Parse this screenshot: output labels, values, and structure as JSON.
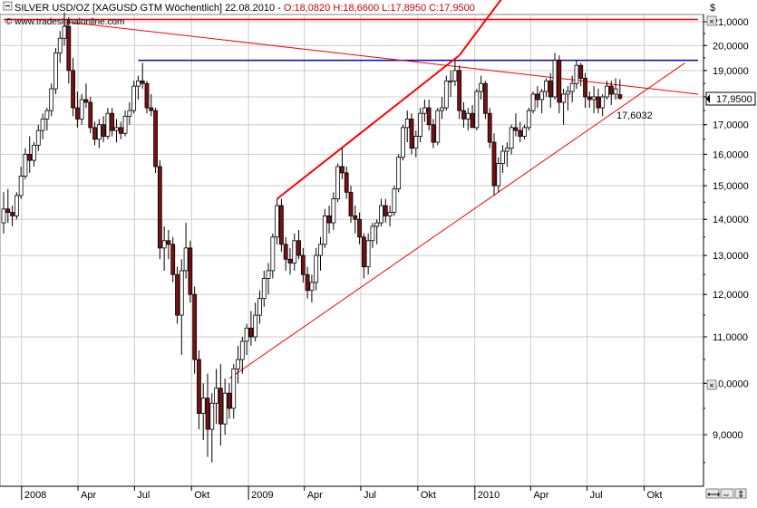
{
  "header": {
    "title_prefix": "SILVER USD/OZ [XAGUSD GTM  Wöchentlich] 22.08.2010 - ",
    "ohlc": "O:18,0820 H:18,6600 L:17,8950 C:17,9500",
    "watermark": "© www.tradesignalonline.com"
  },
  "price_axis": {
    "currency_label": "$",
    "last_price_label": "17,9500",
    "ticks": [
      "21,0000",
      "20,0000",
      "19,0000",
      "18,0000",
      "17,0000",
      "16,0000",
      "15,0000",
      "14,0000",
      "13,0000",
      "12,0000",
      "11,0000",
      "10,0000",
      "9,0000"
    ]
  },
  "time_axis": {
    "ticks": [
      "2008",
      "Apr",
      "Jul",
      "Okt",
      "2009",
      "Apr",
      "Jul",
      "Okt",
      "2010",
      "Apr",
      "Jul",
      "Okt"
    ]
  },
  "annotations": {
    "trendline_value": "17,6032"
  },
  "colors": {
    "candle_down": "#7a1010",
    "candle_up": "#ffffff",
    "wick": "#000000",
    "horizontal_line": "#0000cc",
    "trend_lines": "#ff0000",
    "grid": "#cccccc",
    "annotation": "#cc0000"
  },
  "chart_data": {
    "type": "candlestick",
    "title": "SILVER USD/OZ [XAGUSD GTM  Wöchentlich] 22.08.2010",
    "scale": "log",
    "ylim": [
      8.2,
      22.0
    ],
    "xlim": [
      "2007-12-03",
      "2010-12-27"
    ],
    "weeks": [
      {
        "d": "2007-12-03",
        "o": 13.9,
        "h": 14.8,
        "l": 13.6,
        "c": 14.3
      },
      {
        "d": "2007-12-10",
        "o": 14.3,
        "h": 14.9,
        "l": 13.9,
        "c": 14.2
      },
      {
        "d": "2007-12-17",
        "o": 14.2,
        "h": 14.4,
        "l": 13.8,
        "c": 14.1
      },
      {
        "d": "2007-12-24",
        "o": 14.1,
        "h": 14.8,
        "l": 14.0,
        "c": 14.7
      },
      {
        "d": "2007-12-31",
        "o": 14.7,
        "h": 15.6,
        "l": 14.6,
        "c": 15.3
      },
      {
        "d": "2008-01-07",
        "o": 15.3,
        "h": 16.2,
        "l": 15.2,
        "c": 16.0
      },
      {
        "d": "2008-01-14",
        "o": 16.0,
        "h": 16.6,
        "l": 15.4,
        "c": 15.8
      },
      {
        "d": "2008-01-21",
        "o": 15.8,
        "h": 16.4,
        "l": 15.6,
        "c": 16.3
      },
      {
        "d": "2008-01-28",
        "o": 16.3,
        "h": 17.0,
        "l": 16.1,
        "c": 16.8
      },
      {
        "d": "2008-02-04",
        "o": 16.8,
        "h": 17.4,
        "l": 16.5,
        "c": 17.2
      },
      {
        "d": "2008-02-11",
        "o": 17.2,
        "h": 17.6,
        "l": 16.8,
        "c": 17.5
      },
      {
        "d": "2008-02-18",
        "o": 17.5,
        "h": 18.5,
        "l": 17.3,
        "c": 18.3
      },
      {
        "d": "2008-02-25",
        "o": 18.3,
        "h": 19.9,
        "l": 18.1,
        "c": 19.7
      },
      {
        "d": "2008-03-03",
        "o": 19.7,
        "h": 20.6,
        "l": 19.3,
        "c": 20.3
      },
      {
        "d": "2008-03-10",
        "o": 20.3,
        "h": 21.4,
        "l": 20.0,
        "c": 20.8
      },
      {
        "d": "2008-03-17",
        "o": 20.8,
        "h": 21.2,
        "l": 18.5,
        "c": 19.0
      },
      {
        "d": "2008-03-24",
        "o": 19.0,
        "h": 19.5,
        "l": 17.3,
        "c": 17.6
      },
      {
        "d": "2008-03-31",
        "o": 17.6,
        "h": 18.2,
        "l": 16.9,
        "c": 17.2
      },
      {
        "d": "2008-04-07",
        "o": 17.2,
        "h": 18.1,
        "l": 17.0,
        "c": 17.9
      },
      {
        "d": "2008-04-14",
        "o": 17.9,
        "h": 18.5,
        "l": 17.6,
        "c": 17.8
      },
      {
        "d": "2008-04-21",
        "o": 17.8,
        "h": 18.0,
        "l": 16.7,
        "c": 16.9
      },
      {
        "d": "2008-04-28",
        "o": 16.9,
        "h": 17.1,
        "l": 16.3,
        "c": 16.5
      },
      {
        "d": "2008-05-05",
        "o": 16.5,
        "h": 17.2,
        "l": 16.2,
        "c": 17.0
      },
      {
        "d": "2008-05-12",
        "o": 17.0,
        "h": 17.3,
        "l": 16.4,
        "c": 16.6
      },
      {
        "d": "2008-05-19",
        "o": 16.6,
        "h": 17.6,
        "l": 16.5,
        "c": 17.4
      },
      {
        "d": "2008-05-26",
        "o": 17.4,
        "h": 17.6,
        "l": 16.6,
        "c": 16.8
      },
      {
        "d": "2008-06-02",
        "o": 16.8,
        "h": 17.2,
        "l": 16.4,
        "c": 16.9
      },
      {
        "d": "2008-06-09",
        "o": 16.9,
        "h": 17.1,
        "l": 16.5,
        "c": 16.7
      },
      {
        "d": "2008-06-16",
        "o": 16.7,
        "h": 17.5,
        "l": 16.6,
        "c": 17.3
      },
      {
        "d": "2008-06-23",
        "o": 17.3,
        "h": 17.8,
        "l": 17.0,
        "c": 17.5
      },
      {
        "d": "2008-06-30",
        "o": 17.5,
        "h": 18.6,
        "l": 17.4,
        "c": 18.4
      },
      {
        "d": "2008-07-07",
        "o": 18.4,
        "h": 18.8,
        "l": 17.9,
        "c": 18.6
      },
      {
        "d": "2008-07-14",
        "o": 18.6,
        "h": 19.3,
        "l": 18.3,
        "c": 18.5
      },
      {
        "d": "2008-07-21",
        "o": 18.5,
        "h": 18.6,
        "l": 17.4,
        "c": 17.6
      },
      {
        "d": "2008-07-28",
        "o": 17.6,
        "h": 18.1,
        "l": 17.3,
        "c": 17.5
      },
      {
        "d": "2008-08-04",
        "o": 17.5,
        "h": 17.6,
        "l": 15.4,
        "c": 15.6
      },
      {
        "d": "2008-08-11",
        "o": 15.6,
        "h": 15.8,
        "l": 12.9,
        "c": 13.2
      },
      {
        "d": "2008-08-18",
        "o": 13.2,
        "h": 13.8,
        "l": 12.6,
        "c": 13.4
      },
      {
        "d": "2008-08-25",
        "o": 13.4,
        "h": 13.7,
        "l": 12.9,
        "c": 13.3
      },
      {
        "d": "2008-09-01",
        "o": 13.3,
        "h": 13.5,
        "l": 12.3,
        "c": 12.5
      },
      {
        "d": "2008-09-08",
        "o": 12.5,
        "h": 12.7,
        "l": 11.3,
        "c": 11.5
      },
      {
        "d": "2008-09-15",
        "o": 11.5,
        "h": 12.9,
        "l": 10.6,
        "c": 12.6
      },
      {
        "d": "2008-09-22",
        "o": 12.6,
        "h": 13.9,
        "l": 12.4,
        "c": 13.2
      },
      {
        "d": "2008-09-29",
        "o": 13.2,
        "h": 13.4,
        "l": 11.8,
        "c": 12.0
      },
      {
        "d": "2008-10-06",
        "o": 12.0,
        "h": 12.2,
        "l": 10.2,
        "c": 10.5
      },
      {
        "d": "2008-10-13",
        "o": 10.5,
        "h": 10.7,
        "l": 9.1,
        "c": 9.4
      },
      {
        "d": "2008-10-20",
        "o": 9.4,
        "h": 10.0,
        "l": 8.9,
        "c": 9.7
      },
      {
        "d": "2008-10-27",
        "o": 9.7,
        "h": 10.2,
        "l": 8.6,
        "c": 9.1
      },
      {
        "d": "2008-11-03",
        "o": 9.1,
        "h": 9.8,
        "l": 8.5,
        "c": 9.6
      },
      {
        "d": "2008-11-10",
        "o": 9.6,
        "h": 10.3,
        "l": 9.2,
        "c": 9.9
      },
      {
        "d": "2008-11-17",
        "o": 9.9,
        "h": 10.4,
        "l": 8.8,
        "c": 9.2
      },
      {
        "d": "2008-11-24",
        "o": 9.2,
        "h": 10.1,
        "l": 9.0,
        "c": 9.8
      },
      {
        "d": "2008-12-01",
        "o": 9.8,
        "h": 10.0,
        "l": 9.3,
        "c": 9.5
      },
      {
        "d": "2008-12-08",
        "o": 9.5,
        "h": 10.4,
        "l": 9.3,
        "c": 10.3
      },
      {
        "d": "2008-12-15",
        "o": 10.3,
        "h": 10.8,
        "l": 10.0,
        "c": 10.5
      },
      {
        "d": "2008-12-22",
        "o": 10.5,
        "h": 11.0,
        "l": 10.2,
        "c": 10.9
      },
      {
        "d": "2008-12-29",
        "o": 10.9,
        "h": 11.3,
        "l": 10.6,
        "c": 11.2
      },
      {
        "d": "2009-01-05",
        "o": 11.2,
        "h": 11.6,
        "l": 10.8,
        "c": 11.0
      },
      {
        "d": "2009-01-12",
        "o": 11.0,
        "h": 11.8,
        "l": 10.9,
        "c": 11.5
      },
      {
        "d": "2009-01-19",
        "o": 11.5,
        "h": 12.1,
        "l": 11.3,
        "c": 11.9
      },
      {
        "d": "2009-01-26",
        "o": 11.9,
        "h": 12.6,
        "l": 11.7,
        "c": 12.4
      },
      {
        "d": "2009-02-02",
        "o": 12.4,
        "h": 12.8,
        "l": 12.0,
        "c": 12.6
      },
      {
        "d": "2009-02-09",
        "o": 12.6,
        "h": 13.6,
        "l": 12.4,
        "c": 13.5
      },
      {
        "d": "2009-02-16",
        "o": 13.5,
        "h": 14.6,
        "l": 13.3,
        "c": 14.4
      },
      {
        "d": "2009-02-23",
        "o": 14.4,
        "h": 14.6,
        "l": 13.1,
        "c": 13.3
      },
      {
        "d": "2009-03-02",
        "o": 13.3,
        "h": 13.5,
        "l": 12.6,
        "c": 12.9
      },
      {
        "d": "2009-03-09",
        "o": 12.9,
        "h": 13.2,
        "l": 12.5,
        "c": 12.8
      },
      {
        "d": "2009-03-16",
        "o": 12.8,
        "h": 13.6,
        "l": 12.6,
        "c": 13.4
      },
      {
        "d": "2009-03-23",
        "o": 13.4,
        "h": 13.7,
        "l": 12.9,
        "c": 13.0
      },
      {
        "d": "2009-03-30",
        "o": 13.0,
        "h": 13.2,
        "l": 12.3,
        "c": 12.5
      },
      {
        "d": "2009-04-06",
        "o": 12.5,
        "h": 12.7,
        "l": 11.9,
        "c": 12.1
      },
      {
        "d": "2009-04-13",
        "o": 12.1,
        "h": 12.5,
        "l": 11.8,
        "c": 12.3
      },
      {
        "d": "2009-04-20",
        "o": 12.3,
        "h": 13.2,
        "l": 12.1,
        "c": 13.0
      },
      {
        "d": "2009-04-27",
        "o": 13.0,
        "h": 13.5,
        "l": 12.6,
        "c": 13.3
      },
      {
        "d": "2009-05-04",
        "o": 13.3,
        "h": 14.3,
        "l": 13.2,
        "c": 14.1
      },
      {
        "d": "2009-05-11",
        "o": 14.1,
        "h": 14.4,
        "l": 13.6,
        "c": 13.9
      },
      {
        "d": "2009-05-18",
        "o": 13.9,
        "h": 14.8,
        "l": 13.7,
        "c": 14.6
      },
      {
        "d": "2009-05-25",
        "o": 14.6,
        "h": 15.7,
        "l": 14.5,
        "c": 15.6
      },
      {
        "d": "2009-06-01",
        "o": 15.6,
        "h": 16.2,
        "l": 15.2,
        "c": 15.4
      },
      {
        "d": "2009-06-08",
        "o": 15.4,
        "h": 15.6,
        "l": 14.6,
        "c": 14.8
      },
      {
        "d": "2009-06-15",
        "o": 14.8,
        "h": 15.0,
        "l": 13.9,
        "c": 14.1
      },
      {
        "d": "2009-06-22",
        "o": 14.1,
        "h": 14.4,
        "l": 13.6,
        "c": 14.0
      },
      {
        "d": "2009-06-29",
        "o": 14.0,
        "h": 14.2,
        "l": 13.3,
        "c": 13.5
      },
      {
        "d": "2009-07-06",
        "o": 13.5,
        "h": 13.6,
        "l": 12.4,
        "c": 12.7
      },
      {
        "d": "2009-07-13",
        "o": 12.7,
        "h": 13.6,
        "l": 12.5,
        "c": 13.4
      },
      {
        "d": "2009-07-20",
        "o": 13.4,
        "h": 13.9,
        "l": 13.2,
        "c": 13.8
      },
      {
        "d": "2009-07-27",
        "o": 13.8,
        "h": 14.0,
        "l": 13.3,
        "c": 13.9
      },
      {
        "d": "2009-08-03",
        "o": 13.9,
        "h": 14.6,
        "l": 13.8,
        "c": 14.4
      },
      {
        "d": "2009-08-10",
        "o": 14.4,
        "h": 14.6,
        "l": 13.9,
        "c": 14.1
      },
      {
        "d": "2009-08-17",
        "o": 14.1,
        "h": 14.4,
        "l": 13.8,
        "c": 14.2
      },
      {
        "d": "2009-08-24",
        "o": 14.2,
        "h": 15.0,
        "l": 14.1,
        "c": 14.9
      },
      {
        "d": "2009-08-31",
        "o": 14.9,
        "h": 16.0,
        "l": 14.8,
        "c": 15.9
      },
      {
        "d": "2009-09-07",
        "o": 15.9,
        "h": 17.0,
        "l": 15.8,
        "c": 16.9
      },
      {
        "d": "2009-09-14",
        "o": 16.9,
        "h": 17.5,
        "l": 16.4,
        "c": 17.2
      },
      {
        "d": "2009-09-21",
        "o": 17.2,
        "h": 17.4,
        "l": 16.0,
        "c": 16.2
      },
      {
        "d": "2009-09-28",
        "o": 16.2,
        "h": 16.8,
        "l": 15.9,
        "c": 16.6
      },
      {
        "d": "2009-10-05",
        "o": 16.6,
        "h": 17.6,
        "l": 16.4,
        "c": 17.4
      },
      {
        "d": "2009-10-12",
        "o": 17.4,
        "h": 17.9,
        "l": 17.1,
        "c": 17.6
      },
      {
        "d": "2009-10-19",
        "o": 17.6,
        "h": 17.9,
        "l": 16.8,
        "c": 17.0
      },
      {
        "d": "2009-10-26",
        "o": 17.0,
        "h": 17.2,
        "l": 16.2,
        "c": 16.4
      },
      {
        "d": "2009-11-02",
        "o": 16.4,
        "h": 17.6,
        "l": 16.3,
        "c": 17.5
      },
      {
        "d": "2009-11-09",
        "o": 17.5,
        "h": 18.0,
        "l": 17.2,
        "c": 17.6
      },
      {
        "d": "2009-11-16",
        "o": 17.6,
        "h": 18.8,
        "l": 17.5,
        "c": 18.6
      },
      {
        "d": "2009-11-23",
        "o": 18.6,
        "h": 19.0,
        "l": 18.0,
        "c": 18.6
      },
      {
        "d": "2009-11-30",
        "o": 18.6,
        "h": 19.4,
        "l": 18.4,
        "c": 19.0
      },
      {
        "d": "2009-12-07",
        "o": 19.0,
        "h": 19.2,
        "l": 17.2,
        "c": 17.5
      },
      {
        "d": "2009-12-14",
        "o": 17.5,
        "h": 17.8,
        "l": 16.9,
        "c": 17.2
      },
      {
        "d": "2009-12-21",
        "o": 17.2,
        "h": 17.6,
        "l": 16.8,
        "c": 17.4
      },
      {
        "d": "2009-12-28",
        "o": 17.4,
        "h": 17.7,
        "l": 16.9,
        "c": 16.9
      },
      {
        "d": "2010-01-04",
        "o": 16.9,
        "h": 18.3,
        "l": 16.8,
        "c": 18.2
      },
      {
        "d": "2010-01-11",
        "o": 18.2,
        "h": 18.8,
        "l": 17.9,
        "c": 18.5
      },
      {
        "d": "2010-01-18",
        "o": 18.5,
        "h": 18.6,
        "l": 17.2,
        "c": 17.4
      },
      {
        "d": "2010-01-25",
        "o": 17.4,
        "h": 17.6,
        "l": 16.2,
        "c": 16.4
      },
      {
        "d": "2010-02-01",
        "o": 16.4,
        "h": 16.7,
        "l": 14.7,
        "c": 15.0
      },
      {
        "d": "2010-02-08",
        "o": 15.0,
        "h": 15.9,
        "l": 14.8,
        "c": 15.7
      },
      {
        "d": "2010-02-15",
        "o": 15.7,
        "h": 16.3,
        "l": 15.4,
        "c": 16.1
      },
      {
        "d": "2010-02-22",
        "o": 16.1,
        "h": 16.4,
        "l": 15.6,
        "c": 16.2
      },
      {
        "d": "2010-03-01",
        "o": 16.2,
        "h": 17.0,
        "l": 16.0,
        "c": 16.9
      },
      {
        "d": "2010-03-08",
        "o": 16.9,
        "h": 17.4,
        "l": 16.6,
        "c": 16.8
      },
      {
        "d": "2010-03-15",
        "o": 16.8,
        "h": 17.1,
        "l": 16.4,
        "c": 16.6
      },
      {
        "d": "2010-03-22",
        "o": 16.6,
        "h": 17.0,
        "l": 16.5,
        "c": 16.9
      },
      {
        "d": "2010-03-29",
        "o": 16.9,
        "h": 17.6,
        "l": 16.8,
        "c": 17.5
      },
      {
        "d": "2010-04-05",
        "o": 17.5,
        "h": 18.2,
        "l": 17.4,
        "c": 18.1
      },
      {
        "d": "2010-04-12",
        "o": 18.1,
        "h": 18.4,
        "l": 17.6,
        "c": 17.9
      },
      {
        "d": "2010-04-19",
        "o": 17.9,
        "h": 18.3,
        "l": 17.4,
        "c": 18.2
      },
      {
        "d": "2010-04-26",
        "o": 18.2,
        "h": 18.7,
        "l": 18.0,
        "c": 18.6
      },
      {
        "d": "2010-05-03",
        "o": 18.6,
        "h": 18.9,
        "l": 17.6,
        "c": 18.0
      },
      {
        "d": "2010-05-10",
        "o": 18.0,
        "h": 19.7,
        "l": 17.9,
        "c": 19.4
      },
      {
        "d": "2010-05-17",
        "o": 19.4,
        "h": 19.6,
        "l": 17.4,
        "c": 17.8
      },
      {
        "d": "2010-05-24",
        "o": 17.8,
        "h": 18.3,
        "l": 17.0,
        "c": 18.1
      },
      {
        "d": "2010-05-31",
        "o": 18.1,
        "h": 18.4,
        "l": 17.5,
        "c": 18.2
      },
      {
        "d": "2010-06-07",
        "o": 18.2,
        "h": 18.8,
        "l": 17.8,
        "c": 18.5
      },
      {
        "d": "2010-06-14",
        "o": 18.5,
        "h": 19.4,
        "l": 18.3,
        "c": 19.2
      },
      {
        "d": "2010-06-21",
        "o": 19.2,
        "h": 19.3,
        "l": 18.4,
        "c": 18.7
      },
      {
        "d": "2010-06-28",
        "o": 18.7,
        "h": 18.9,
        "l": 17.6,
        "c": 18.0
      },
      {
        "d": "2010-07-05",
        "o": 18.0,
        "h": 18.2,
        "l": 17.6,
        "c": 17.9
      },
      {
        "d": "2010-07-12",
        "o": 17.9,
        "h": 18.4,
        "l": 17.4,
        "c": 18.0
      },
      {
        "d": "2010-07-19",
        "o": 18.0,
        "h": 18.3,
        "l": 17.4,
        "c": 17.6
      },
      {
        "d": "2010-07-26",
        "o": 17.6,
        "h": 18.1,
        "l": 17.3,
        "c": 18.0
      },
      {
        "d": "2010-08-02",
        "o": 18.0,
        "h": 18.6,
        "l": 17.9,
        "c": 18.4
      },
      {
        "d": "2010-08-09",
        "o": 18.4,
        "h": 18.6,
        "l": 17.7,
        "c": 18.1
      },
      {
        "d": "2010-08-16",
        "o": 18.1,
        "h": 18.7,
        "l": 17.9,
        "c": 18.3
      },
      {
        "d": "2010-08-23",
        "o": 18.08,
        "h": 18.66,
        "l": 17.895,
        "c": 17.95
      }
    ],
    "lines": [
      {
        "name": "resistance-horizontal",
        "color": "#0000cc",
        "from": [
          "2008-07-07",
          19.4
        ],
        "to": [
          "2010-12-27",
          19.4
        ]
      },
      {
        "name": "top-horizontal",
        "color": "#ff0000",
        "from": [
          "2007-12-03",
          21.1
        ],
        "to": [
          "2010-12-27",
          21.1
        ]
      },
      {
        "name": "descending-trendline",
        "color": "#ff0000",
        "from": [
          "2008-03-10",
          21.0
        ],
        "to": [
          "2010-12-27",
          18.1
        ]
      },
      {
        "name": "channel-top",
        "color": "#ff0000",
        "from": [
          "2009-02-16",
          14.6
        ],
        "to": [
          "2009-12-07",
          19.6
        ]
      },
      {
        "name": "channel-top-extension",
        "color": "#ff0000",
        "from": [
          "2009-12-07",
          19.6
        ],
        "to": [
          "2010-04-05",
          24.0
        ]
      },
      {
        "name": "ascending-support",
        "color": "#ff0000",
        "from": [
          "2008-12-01",
          10.1
        ],
        "to": [
          "2010-12-06",
          19.3
        ]
      }
    ]
  }
}
